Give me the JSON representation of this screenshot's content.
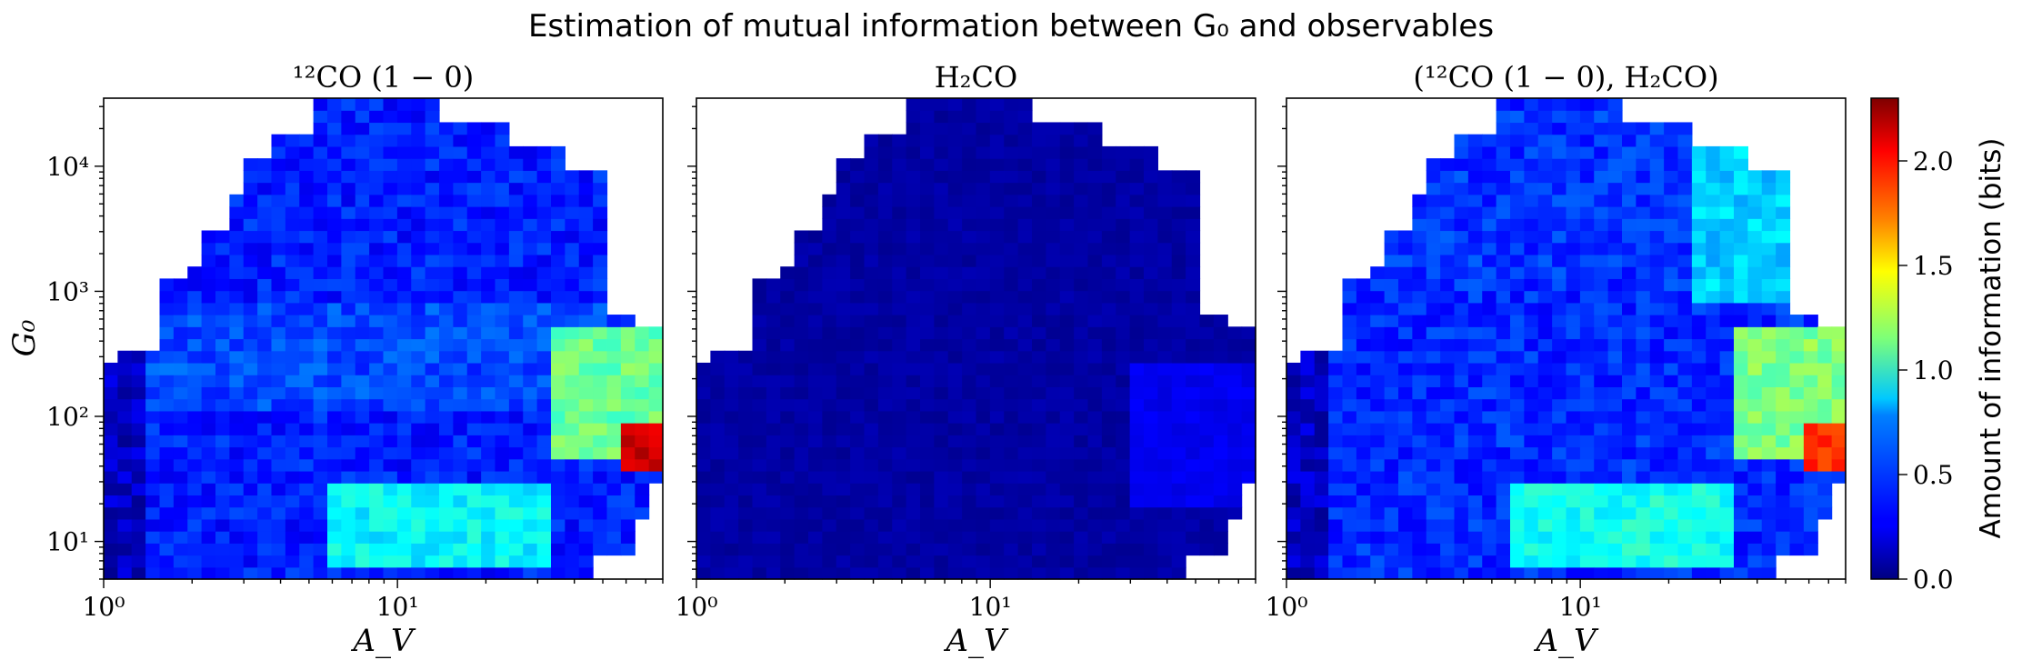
{
  "figure": {
    "title": "Estimation of mutual information between G₀ and observables"
  },
  "colorbar": {
    "label": "Amount of information (bits)",
    "ticks": [
      "0.0",
      "0.5",
      "1.0",
      "1.5",
      "2.0"
    ],
    "range": [
      0.0,
      2.3
    ],
    "colormap": "jet"
  },
  "chart_data": [
    {
      "type": "heatmap",
      "title": "¹²CO (1 − 0)",
      "xlabel": "A_V",
      "ylabel": "G₀",
      "xscale": "log",
      "yscale": "log",
      "xlim": [
        1,
        80
      ],
      "ylim": [
        5,
        35000
      ],
      "x_ticks": [
        "10⁰",
        "10¹"
      ],
      "y_ticks": [
        "10¹",
        "10²",
        "10³",
        "10⁴"
      ],
      "value_range": [
        0.0,
        2.3
      ],
      "regions": [
        {
          "description": "background",
          "value": 0.35
        },
        {
          "description": "high G0 band",
          "av_range": [
            1.5,
            25
          ],
          "g0_range": [
            1000,
            30000
          ],
          "value": 0.35
        },
        {
          "description": "mid band",
          "av_range": [
            1,
            80
          ],
          "g0_range": [
            100,
            800
          ],
          "value": 0.45
        },
        {
          "description": "low G0 band",
          "av_range": [
            6,
            35
          ],
          "g0_range": [
            6,
            30
          ],
          "value": 0.85
        },
        {
          "description": "high A_V region",
          "av_range": [
            35,
            80
          ],
          "g0_range": [
            50,
            500
          ],
          "value": 1.1
        },
        {
          "description": "peak",
          "av_range": [
            55,
            80
          ],
          "g0_range": [
            40,
            90
          ],
          "value": 2.1
        },
        {
          "description": "low A_V strip",
          "av_range": [
            1,
            1.4
          ],
          "g0_range": [
            5,
            500
          ],
          "value": 0.15
        }
      ]
    },
    {
      "type": "heatmap",
      "title": "H₂CO",
      "xlabel": "A_V",
      "xscale": "log",
      "yscale": "log",
      "xlim": [
        1,
        80
      ],
      "ylim": [
        5,
        35000
      ],
      "x_ticks": [
        "10⁰",
        "10¹"
      ],
      "value_range": [
        0.0,
        2.3
      ],
      "regions": [
        {
          "description": "background",
          "value": 0.08
        },
        {
          "description": "high A_V edge",
          "av_range": [
            30,
            80
          ],
          "g0_range": [
            20,
            300
          ],
          "value": 0.25
        }
      ]
    },
    {
      "type": "heatmap",
      "title": "(¹²CO (1 − 0), H₂CO)",
      "xlabel": "A_V",
      "xscale": "log",
      "yscale": "log",
      "xlim": [
        1,
        80
      ],
      "ylim": [
        5,
        35000
      ],
      "x_ticks": [
        "10⁰",
        "10¹"
      ],
      "value_range": [
        0.0,
        2.3
      ],
      "regions": [
        {
          "description": "background",
          "value": 0.38
        },
        {
          "description": "high G0 band",
          "av_range": [
            1.5,
            25
          ],
          "g0_range": [
            1000,
            30000
          ],
          "value": 0.4
        },
        {
          "description": "upper right",
          "av_range": [
            25,
            60
          ],
          "g0_range": [
            800,
            15000
          ],
          "value": 0.75
        },
        {
          "description": "low G0 band",
          "av_range": [
            6,
            35
          ],
          "g0_range": [
            6,
            30
          ],
          "value": 0.9
        },
        {
          "description": "high A_V region",
          "av_range": [
            35,
            80
          ],
          "g0_range": [
            50,
            500
          ],
          "value": 1.15
        },
        {
          "description": "peak",
          "av_range": [
            55,
            80
          ],
          "g0_range": [
            40,
            90
          ],
          "value": 1.9
        },
        {
          "description": "low A_V strip",
          "av_range": [
            1,
            1.4
          ],
          "g0_range": [
            5,
            500
          ],
          "value": 0.15
        }
      ]
    }
  ]
}
